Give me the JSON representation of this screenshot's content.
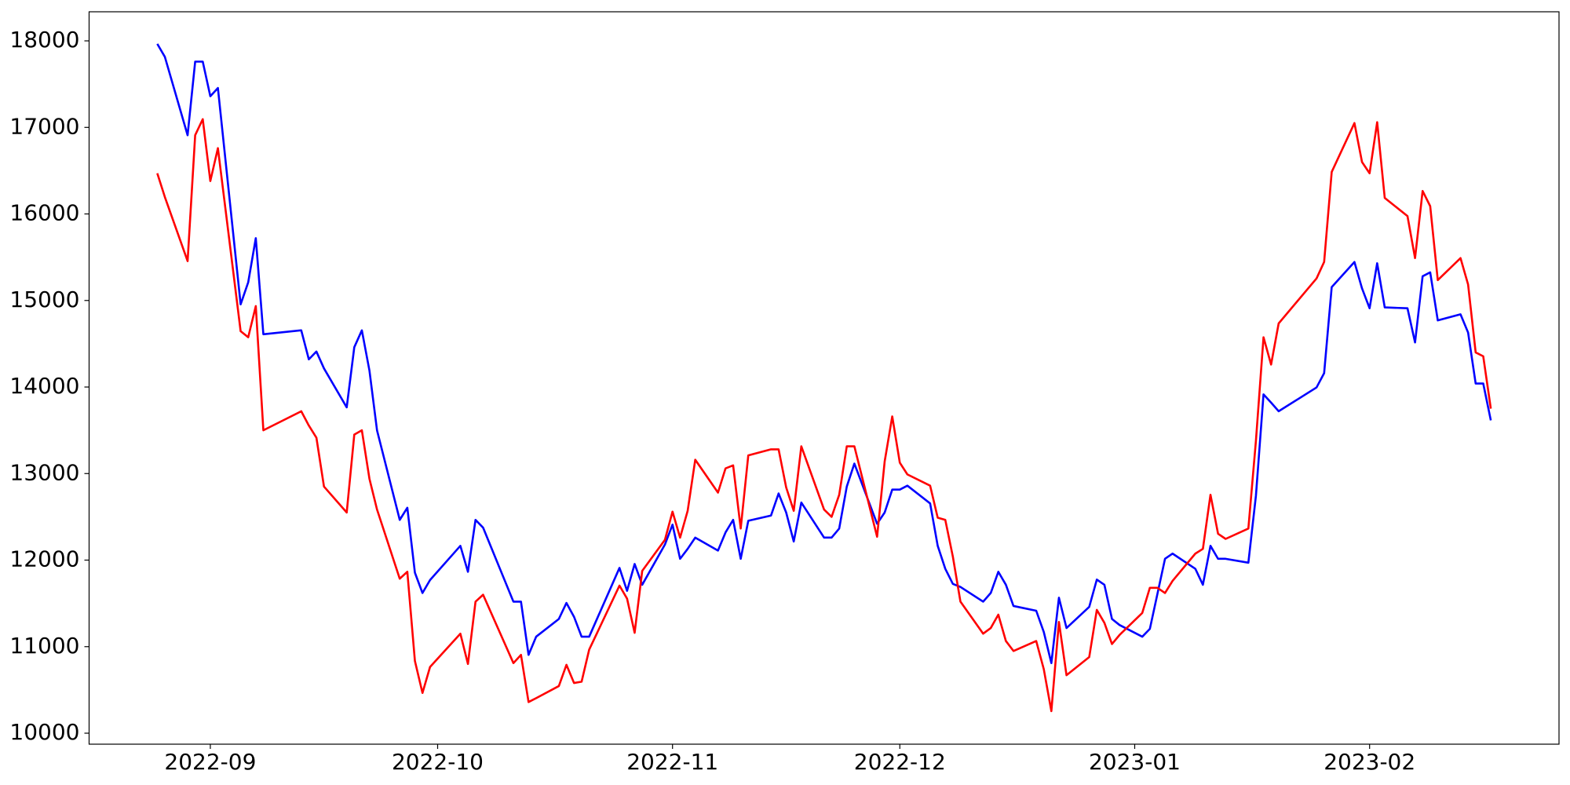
{
  "chart_data": {
    "type": "line",
    "x": [
      "2022-08-25",
      "2022-08-26",
      "2022-08-29",
      "2022-08-30",
      "2022-08-31",
      "2022-09-01",
      "2022-09-02",
      "2022-09-05",
      "2022-09-06",
      "2022-09-07",
      "2022-09-08",
      "2022-09-13",
      "2022-09-14",
      "2022-09-15",
      "2022-09-16",
      "2022-09-19",
      "2022-09-20",
      "2022-09-21",
      "2022-09-22",
      "2022-09-23",
      "2022-09-26",
      "2022-09-27",
      "2022-09-28",
      "2022-09-29",
      "2022-09-30",
      "2022-10-04",
      "2022-10-05",
      "2022-10-06",
      "2022-10-07",
      "2022-10-11",
      "2022-10-12",
      "2022-10-13",
      "2022-10-14",
      "2022-10-17",
      "2022-10-18",
      "2022-10-19",
      "2022-10-20",
      "2022-10-21",
      "2022-10-25",
      "2022-10-26",
      "2022-10-27",
      "2022-10-28",
      "2022-10-31",
      "2022-11-01",
      "2022-11-02",
      "2022-11-03",
      "2022-11-04",
      "2022-11-07",
      "2022-11-08",
      "2022-11-09",
      "2022-11-10",
      "2022-11-11",
      "2022-11-14",
      "2022-11-15",
      "2022-11-16",
      "2022-11-17",
      "2022-11-18",
      "2022-11-21",
      "2022-11-22",
      "2022-11-23",
      "2022-11-24",
      "2022-11-25",
      "2022-11-28",
      "2022-11-29",
      "2022-11-30",
      "2022-12-01",
      "2022-12-02",
      "2022-12-05",
      "2022-12-06",
      "2022-12-07",
      "2022-12-08",
      "2022-12-09",
      "2022-12-12",
      "2022-12-13",
      "2022-12-14",
      "2022-12-15",
      "2022-12-16",
      "2022-12-19",
      "2022-12-20",
      "2022-12-21",
      "2022-12-22",
      "2022-12-23",
      "2022-12-26",
      "2022-12-27",
      "2022-12-28",
      "2022-12-29",
      "2022-12-30",
      "2023-01-02",
      "2023-01-03",
      "2023-01-04",
      "2023-01-05",
      "2023-01-06",
      "2023-01-09",
      "2023-01-10",
      "2023-01-11",
      "2023-01-12",
      "2023-01-13",
      "2023-01-16",
      "2023-01-17",
      "2023-01-18",
      "2023-01-19",
      "2023-01-20",
      "2023-01-25",
      "2023-01-26",
      "2023-01-27",
      "2023-01-30",
      "2023-01-31",
      "2023-02-01",
      "2023-02-02",
      "2023-02-03",
      "2023-02-06",
      "2023-02-07",
      "2023-02-08",
      "2023-02-09",
      "2023-02-10",
      "2023-02-13",
      "2023-02-14",
      "2023-02-15",
      "2023-02-16",
      "2023-02-17"
    ],
    "series": [
      {
        "color": "#0000ff",
        "values": [
          17965,
          17815,
          16910,
          17760,
          17760,
          17360,
          17455,
          14955,
          15210,
          15720,
          14610,
          14655,
          14320,
          14410,
          14215,
          13765,
          14460,
          14655,
          14190,
          13500,
          12465,
          12605,
          11855,
          11620,
          11770,
          12165,
          11865,
          12465,
          12375,
          11520,
          11520,
          10905,
          11115,
          11320,
          11505,
          11345,
          11115,
          11115,
          11910,
          11645,
          11955,
          11715,
          12180,
          12410,
          12015,
          12130,
          12260,
          12110,
          12320,
          12465,
          12015,
          12455,
          12515,
          12770,
          12550,
          12215,
          12665,
          12260,
          12260,
          12365,
          12850,
          13115,
          12420,
          12550,
          12815,
          12815,
          12860,
          12655,
          12165,
          11900,
          11725,
          11690,
          11520,
          11620,
          11865,
          11715,
          11470,
          11415,
          11170,
          10810,
          11565,
          11215,
          11460,
          11775,
          11715,
          11320,
          11250,
          11115,
          11205,
          11610,
          12015,
          12075,
          11900,
          11715,
          12165,
          12015,
          12015,
          11970,
          12745,
          13915,
          13820,
          13720,
          13995,
          14160,
          15155,
          15445,
          15140,
          14910,
          15430,
          14920,
          14910,
          14515,
          15280,
          15325,
          14770,
          14840,
          14630,
          14040,
          14040,
          13615
        ]
      },
      {
        "color": "#ff0000",
        "values": [
          16470,
          16195,
          15455,
          16910,
          17095,
          16380,
          16760,
          14645,
          14575,
          14935,
          13500,
          13720,
          13555,
          13415,
          12850,
          12550,
          13450,
          13500,
          12940,
          12585,
          11785,
          11865,
          10835,
          10465,
          10765,
          11150,
          10800,
          11520,
          11600,
          10810,
          10905,
          10360,
          10405,
          10545,
          10790,
          10580,
          10595,
          10965,
          11705,
          11555,
          11160,
          11875,
          12235,
          12560,
          12260,
          12570,
          13160,
          12780,
          13060,
          13095,
          12365,
          13210,
          13280,
          13280,
          12840,
          12570,
          13315,
          12585,
          12500,
          12755,
          13315,
          13315,
          12270,
          13140,
          13660,
          13125,
          12990,
          12860,
          12490,
          12465,
          12040,
          11520,
          11150,
          11215,
          11370,
          11065,
          10950,
          11065,
          10740,
          10255,
          11285,
          10670,
          10880,
          11425,
          11275,
          11030,
          11135,
          11390,
          11680,
          11680,
          11620,
          11760,
          12075,
          12130,
          12755,
          12305,
          12245,
          12365,
          13380,
          14575,
          14260,
          14735,
          15255,
          15445,
          16485,
          17050,
          16600,
          16470,
          17060,
          16185,
          15975,
          15490,
          16265,
          16090,
          15235,
          15490,
          15185,
          14400,
          14355,
          13750
        ]
      }
    ],
    "xlim": [
      "2022-08-16",
      "2023-02-26"
    ],
    "xticks": [
      {
        "value": "2022-09-01",
        "label": "2022-09"
      },
      {
        "value": "2022-10-01",
        "label": "2022-10"
      },
      {
        "value": "2022-11-01",
        "label": "2022-11"
      },
      {
        "value": "2022-12-01",
        "label": "2022-12"
      },
      {
        "value": "2023-01-01",
        "label": "2023-01"
      },
      {
        "value": "2023-02-01",
        "label": "2023-02"
      }
    ],
    "ylim": [
      9873,
      18336
    ],
    "yticks": [
      10000,
      11000,
      12000,
      13000,
      14000,
      15000,
      16000,
      17000,
      18000
    ],
    "grid": false
  }
}
